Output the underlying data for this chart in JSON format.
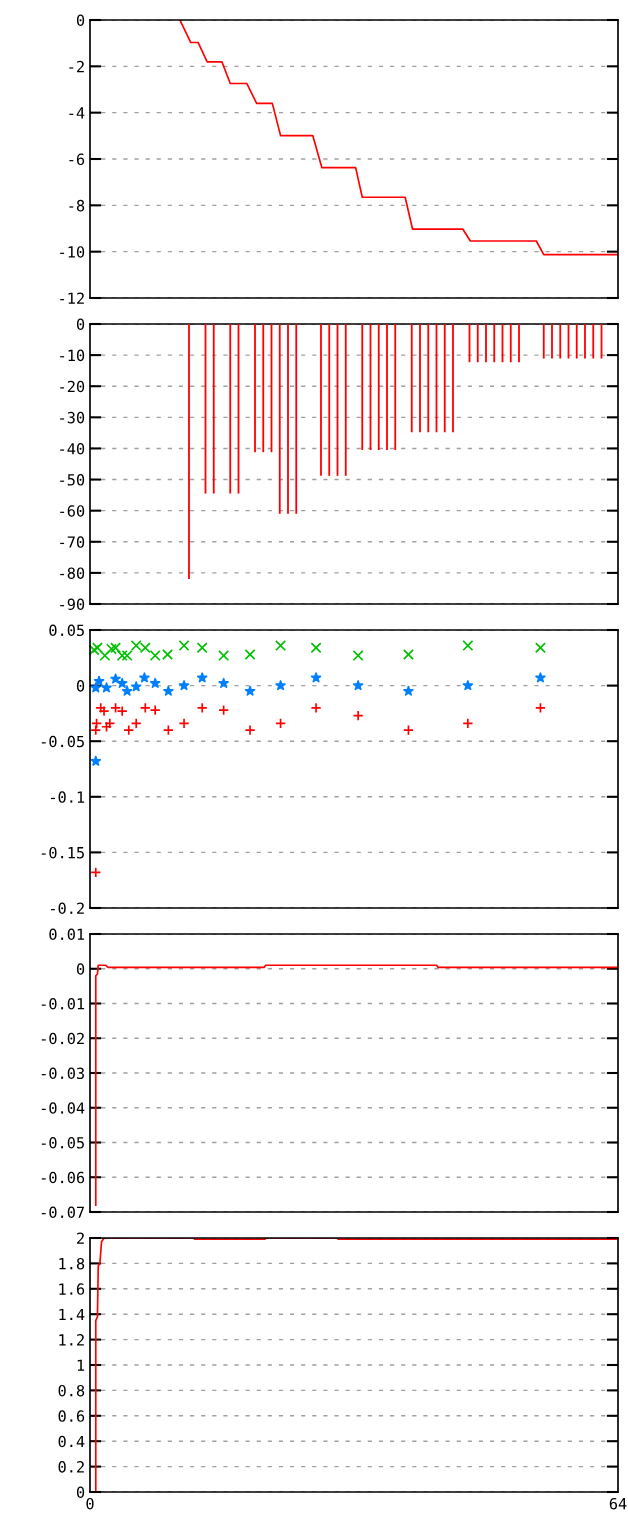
{
  "chart_data": [
    {
      "type": "line",
      "x": [
        10.9,
        12.2,
        13.1,
        14.2,
        16.0,
        17.0,
        19.0,
        20.2,
        22.1,
        23.1,
        27.0,
        28.1,
        32.2,
        33.0,
        38.2,
        39.1,
        45.2,
        46.1,
        54.1,
        55.0,
        64
      ],
      "series": [
        {
          "color": "#ff0000",
          "values": [
            0,
            -0.97,
            -0.97,
            -1.81,
            -1.81,
            -2.74,
            -2.74,
            -3.6,
            -3.6,
            -4.99,
            -4.99,
            -6.37,
            -6.37,
            -7.65,
            -7.65,
            -9.03,
            -9.03,
            -9.54,
            -9.54,
            -10.13,
            -10.13
          ]
        }
      ],
      "xlim": [
        0,
        64
      ],
      "xticks": [
        0,
        64
      ],
      "ylim": [
        -12,
        0
      ],
      "yticks": [
        -12,
        -10,
        -8,
        -6,
        -4,
        -2,
        0
      ],
      "grid": "y",
      "tick_labels": "y"
    },
    {
      "type": "bar",
      "x": [
        12,
        14,
        15,
        17,
        18,
        20,
        21,
        22,
        23,
        24,
        25,
        28,
        29,
        30,
        31,
        33,
        34,
        35,
        36,
        37,
        39,
        40,
        41,
        42,
        43,
        44,
        46,
        47,
        48,
        49,
        50,
        51,
        52,
        55,
        56,
        57,
        58,
        59,
        60,
        61,
        62
      ],
      "series": [
        {
          "color": "#ff0000",
          "values": [
            -82,
            -54.5,
            -54.5,
            -54.5,
            -54.5,
            -41.2,
            -41.2,
            -41.2,
            -61,
            -61,
            -61,
            -48.8,
            -48.8,
            -48.8,
            -48.8,
            -40.5,
            -40.5,
            -40.5,
            -40.5,
            -40.5,
            -34.8,
            -34.8,
            -34.8,
            -34.8,
            -34.8,
            -34.8,
            -12.3,
            -12.3,
            -12.3,
            -12.3,
            -12.3,
            -12.3,
            -12.3,
            -11.1,
            -11.1,
            -11.1,
            -11.1,
            -11.1,
            -11.1,
            -11.1,
            -11.1
          ]
        }
      ],
      "xlim": [
        0,
        64
      ],
      "xticks": [
        0,
        64
      ],
      "ylim": [
        -90,
        0
      ],
      "yticks": [
        -90,
        -80,
        -70,
        -60,
        -50,
        -40,
        -30,
        -20,
        -10,
        0
      ],
      "grid": "y",
      "tick_labels": "y"
    },
    {
      "type": "scatter",
      "series": [
        {
          "color": "#00c000",
          "marker": "cross",
          "x": [
            0.5,
            0.9,
            1.8,
            2.6,
            3.1,
            3.9,
            4.5,
            5.6,
            6.7,
            7.9,
            9.4,
            11.4,
            13.6,
            16.2,
            19.4,
            23.1,
            27.4,
            32.5,
            38.6,
            45.8,
            54.6
          ],
          "values": [
            0.032,
            0.034,
            0.027,
            0.033,
            0.034,
            0.027,
            0.027,
            0.036,
            0.034,
            0.027,
            0.028,
            0.036,
            0.034,
            0.027,
            0.028,
            0.036,
            0.034,
            0.027,
            0.028,
            0.036,
            0.034
          ]
        },
        {
          "color": "#0080ff",
          "marker": "star",
          "x": [
            0.7,
            0.7,
            1.1,
            2.0,
            3.1,
            3.9,
            4.5,
            5.6,
            6.6,
            7.9,
            9.5,
            11.4,
            13.6,
            16.2,
            19.4,
            23.1,
            27.4,
            32.5,
            38.6,
            45.8,
            54.6
          ],
          "values": [
            -0.068,
            -0.002,
            0.004,
            -0.002,
            0.006,
            0.002,
            -0.005,
            -0.001,
            0.007,
            0.002,
            -0.005,
            0,
            0.007,
            0.002,
            -0.005,
            0,
            0.007,
            0,
            -0.005,
            0,
            0.007
          ]
        },
        {
          "color": "#ff0000",
          "marker": "plus",
          "x": [
            0.7,
            0.7,
            0.8,
            1.3,
            1.7,
            2.0,
            2.4,
            3.1,
            3.9,
            4.7,
            5.6,
            6.7,
            7.9,
            9.5,
            11.4,
            13.6,
            16.2,
            19.4,
            23.1,
            27.4,
            32.5,
            38.6,
            45.8,
            54.6
          ],
          "values": [
            -0.168,
            -0.04,
            -0.034,
            -0.02,
            -0.023,
            -0.037,
            -0.034,
            -0.02,
            -0.023,
            -0.04,
            -0.034,
            -0.02,
            -0.022,
            -0.04,
            -0.034,
            -0.02,
            -0.022,
            -0.04,
            -0.034,
            -0.02,
            -0.027,
            -0.04,
            -0.034,
            -0.02
          ]
        }
      ],
      "xlim": [
        0,
        64
      ],
      "xticks": [
        0,
        64
      ],
      "ylim": [
        -0.2,
        0.05
      ],
      "yticks": [
        -0.2,
        -0.15,
        -0.1,
        -0.05,
        0,
        0.05
      ],
      "grid": "y",
      "tick_labels": "y"
    },
    {
      "type": "line",
      "x": [
        0.7,
        0.7,
        0.9,
        1.0,
        1.9,
        2.2,
        21.1,
        21.3,
        42.0,
        42.2,
        64
      ],
      "series": [
        {
          "color": "#ff0000",
          "values": [
            -0.068,
            -0.002,
            -0.0015,
            0.001,
            0.001,
            0.0004,
            0.0004,
            0.001,
            0.001,
            0.0004,
            0.0004
          ]
        }
      ],
      "xlim": [
        0,
        64
      ],
      "xticks": [
        0,
        64
      ],
      "ylim": [
        -0.07,
        0.01
      ],
      "yticks": [
        -0.07,
        -0.06,
        -0.05,
        -0.04,
        -0.03,
        -0.02,
        -0.01,
        0,
        0.01
      ],
      "grid": "y",
      "tick_labels": "y"
    },
    {
      "type": "line",
      "x": [
        0.7,
        0.7,
        0.9,
        1.0,
        1.2,
        1.4,
        1.7,
        12.6,
        12.7,
        21.2,
        21.3,
        30.0,
        30.1,
        64
      ],
      "series": [
        {
          "color": "#ff0000",
          "values": [
            0,
            1.35,
            1.38,
            1.78,
            1.8,
            1.97,
            2,
            2,
            1.99,
            1.99,
            2,
            2,
            1.99,
            1.99
          ]
        }
      ],
      "xlim": [
        0,
        64
      ],
      "xticks": [
        0,
        64
      ],
      "ylim": [
        0,
        2
      ],
      "yticks": [
        0,
        0.2,
        0.4,
        0.6,
        0.8,
        1,
        1.2,
        1.4,
        1.6,
        1.8,
        2
      ],
      "grid": "y"
    }
  ]
}
